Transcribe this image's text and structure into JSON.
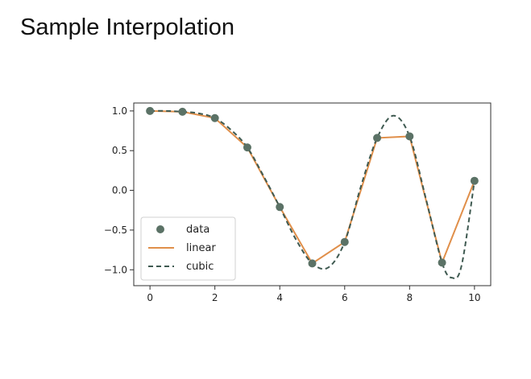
{
  "title": "Sample Interpolation",
  "chart_data": {
    "type": "line",
    "xlim": [
      -0.5,
      10.5
    ],
    "ylim": [
      -1.2,
      1.1
    ],
    "xticks": [
      0,
      2,
      4,
      6,
      8,
      10
    ],
    "xtick_labels": [
      "0",
      "2",
      "4",
      "6",
      "8",
      "10"
    ],
    "yticks": [
      1.0,
      0.5,
      0.0,
      -0.5,
      -1.0
    ],
    "ytick_labels": [
      "1.0",
      "0.5",
      "0.0",
      "−0.5",
      "−1.0"
    ],
    "legend": {
      "placement": "lower-left",
      "entries": [
        "data",
        "linear",
        "cubic"
      ]
    },
    "series": [
      {
        "name": "data",
        "style": "markers",
        "color": "#5b7266",
        "x": [
          0,
          1,
          2,
          3,
          4,
          5,
          6,
          7,
          8,
          9,
          10
        ],
        "y": [
          1.0,
          0.99,
          0.91,
          0.54,
          -0.21,
          -0.92,
          -0.65,
          0.66,
          0.68,
          -0.91,
          0.12
        ]
      },
      {
        "name": "linear",
        "style": "solid",
        "color": "#e08f4a",
        "x": [
          0,
          1,
          2,
          3,
          4,
          5,
          6,
          7,
          8,
          9,
          10
        ],
        "y": [
          1.0,
          0.99,
          0.91,
          0.54,
          -0.21,
          -0.92,
          -0.65,
          0.66,
          0.68,
          -0.91,
          0.12
        ]
      },
      {
        "name": "cubic",
        "style": "dashed",
        "color": "#3f5a51",
        "x": [
          0,
          0.5,
          1,
          1.5,
          2,
          2.5,
          3,
          3.5,
          4,
          4.5,
          5,
          5.5,
          6,
          6.5,
          7,
          7.5,
          8,
          8.5,
          9,
          9.3,
          9.6,
          10
        ],
        "y": [
          1.0,
          1.0,
          0.99,
          0.97,
          0.91,
          0.76,
          0.54,
          0.18,
          -0.21,
          -0.62,
          -0.92,
          -0.97,
          -0.65,
          0.05,
          0.66,
          0.94,
          0.68,
          -0.1,
          -0.91,
          -1.1,
          -0.95,
          0.12
        ]
      }
    ]
  }
}
